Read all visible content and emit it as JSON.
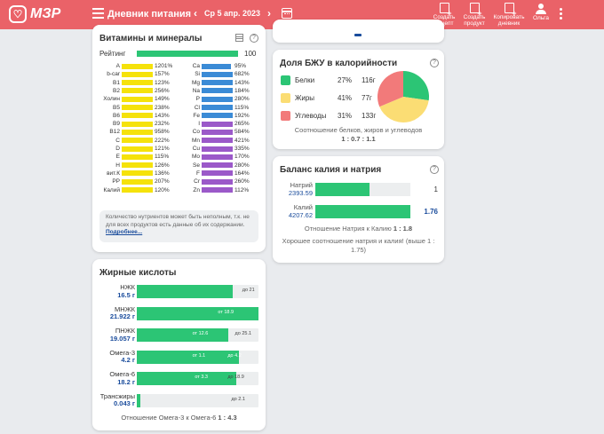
{
  "header": {
    "logo": "МЗР",
    "title": "Дневник питания",
    "date": "Ср 5 апр. 2023",
    "buttons": [
      {
        "label1": "Создать",
        "label2": "рецепт"
      },
      {
        "label1": "Создать",
        "label2": "продукт"
      },
      {
        "label1": "Копировать",
        "label2": "дневник"
      },
      {
        "label1": "Ольга",
        "label2": ""
      }
    ]
  },
  "colors": {
    "accent": "#ea6268",
    "green": "#2cc575",
    "yellow": "#f5e20b",
    "blue": "#3b8bd6",
    "purple": "#9b59c9"
  },
  "vitamins": {
    "title": "Витамины и минералы",
    "rating_label": "Рейтинг",
    "rating_value": "100",
    "left": [
      {
        "name": "A",
        "pct": "1201%",
        "value": 100
      },
      {
        "name": "b-car",
        "pct": "157%",
        "value": 100
      },
      {
        "name": "B1",
        "pct": "123%",
        "value": 100
      },
      {
        "name": "B2",
        "pct": "256%",
        "value": 100
      },
      {
        "name": "Холин",
        "pct": "149%",
        "value": 100
      },
      {
        "name": "B5",
        "pct": "238%",
        "value": 100
      },
      {
        "name": "B6",
        "pct": "143%",
        "value": 100
      },
      {
        "name": "B9",
        "pct": "232%",
        "value": 100
      },
      {
        "name": "B12",
        "pct": "958%",
        "value": 100
      },
      {
        "name": "C",
        "pct": "222%",
        "value": 100
      },
      {
        "name": "D",
        "pct": "121%",
        "value": 100
      },
      {
        "name": "E",
        "pct": "115%",
        "value": 100
      },
      {
        "name": "H",
        "pct": "126%",
        "value": 100
      },
      {
        "name": "вит.К",
        "pct": "136%",
        "value": 100
      },
      {
        "name": "PP",
        "pct": "207%",
        "value": 100
      },
      {
        "name": "Калий",
        "pct": "120%",
        "value": 100
      }
    ],
    "right": [
      {
        "name": "Ca",
        "pct": "95%",
        "value": 95
      },
      {
        "name": "Si",
        "pct": "682%",
        "value": 100
      },
      {
        "name": "Mg",
        "pct": "143%",
        "value": 100
      },
      {
        "name": "Na",
        "pct": "184%",
        "value": 100
      },
      {
        "name": "P",
        "pct": "280%",
        "value": 100
      },
      {
        "name": "Cl",
        "pct": "115%",
        "value": 100
      },
      {
        "name": "Fe",
        "pct": "192%",
        "value": 100
      },
      {
        "name": "I",
        "pct": "265%",
        "value": 100
      },
      {
        "name": "Co",
        "pct": "584%",
        "value": 100
      },
      {
        "name": "Mn",
        "pct": "421%",
        "value": 100
      },
      {
        "name": "Cu",
        "pct": "335%",
        "value": 100
      },
      {
        "name": "Mo",
        "pct": "170%",
        "value": 100
      },
      {
        "name": "Se",
        "pct": "280%",
        "value": 100
      },
      {
        "name": "F",
        "pct": "164%",
        "value": 100
      },
      {
        "name": "Cr",
        "pct": "260%",
        "value": 100
      },
      {
        "name": "Zn",
        "pct": "112%",
        "value": 100
      }
    ],
    "note": "Количество нутриентов может быть неполным, т.к. не для всех продуктов есть данные об их содержании.",
    "note_link": "Подробнее..."
  },
  "fatty": {
    "title": "Жирные кислоты",
    "rows": [
      {
        "name": "НЖК",
        "value": "16.5 г",
        "fill": 0.79,
        "ticks": [
          {
            "text": "до 21",
            "pos": 0.94,
            "white": false
          }
        ]
      },
      {
        "name": "МНЖК",
        "value": "21.922 г",
        "fill": 1.0,
        "ticks": [
          {
            "text": "от 18.9",
            "pos": 0.74,
            "white": true
          }
        ]
      },
      {
        "name": "ПНЖК",
        "value": "19.057 г",
        "fill": 0.75,
        "ticks": [
          {
            "text": "от 12.6",
            "pos": 0.53,
            "white": true
          },
          {
            "text": "до 25.1",
            "pos": 0.88,
            "white": false
          }
        ]
      },
      {
        "name": "Омега-3",
        "value": "4.2 г",
        "fill": 0.84,
        "ticks": [
          {
            "text": "от 1.1",
            "pos": 0.53,
            "white": true
          },
          {
            "text": "до 4.2",
            "pos": 0.82,
            "white": true
          }
        ]
      },
      {
        "name": "Омега-6",
        "value": "18.2 г",
        "fill": 0.82,
        "ticks": [
          {
            "text": "от 3.3",
            "pos": 0.55,
            "white": true
          },
          {
            "text": "до 18.9",
            "pos": 0.82,
            "white": false
          }
        ]
      },
      {
        "name": "Трансжиры",
        "value": "0.043 г",
        "fill": 0.03,
        "ticks": [
          {
            "text": "до 2.1",
            "pos": 0.85,
            "white": false
          }
        ]
      }
    ],
    "ratio_label": "Отношение Омега-3 к Омега-6",
    "ratio_value": "1 : 4.3"
  },
  "bju": {
    "title": "Доля БЖУ в калорийности",
    "items": [
      {
        "name": "Белки",
        "pct": "27%",
        "grams": "116г",
        "color": "#2cc575",
        "share": 27
      },
      {
        "name": "Жиры",
        "pct": "41%",
        "grams": "77г",
        "color": "#fbdd74",
        "share": 41
      },
      {
        "name": "Углеводы",
        "pct": "31%",
        "grams": "133г",
        "color": "#f27a7a",
        "share": 31
      }
    ],
    "ratio_label": "Соотношение белков, жиров и углеводов",
    "ratio_value": "1 : 0.7 : 1.1"
  },
  "kna": {
    "title": "Баланс калия и натрия",
    "rows": [
      {
        "name": "Натрий",
        "value": "2393.59",
        "fill": 0.57,
        "ratio": "1",
        "bold": false
      },
      {
        "name": "Калий",
        "value": "4207.62",
        "fill": 1.0,
        "ratio": "1.76",
        "bold": true
      }
    ],
    "ratio_label": "Отношение Натрия к Калию",
    "ratio_value": "1 : 1.8",
    "comment": "Хорошее соотношение натрия и калия! (выше 1 : 1.75)"
  }
}
